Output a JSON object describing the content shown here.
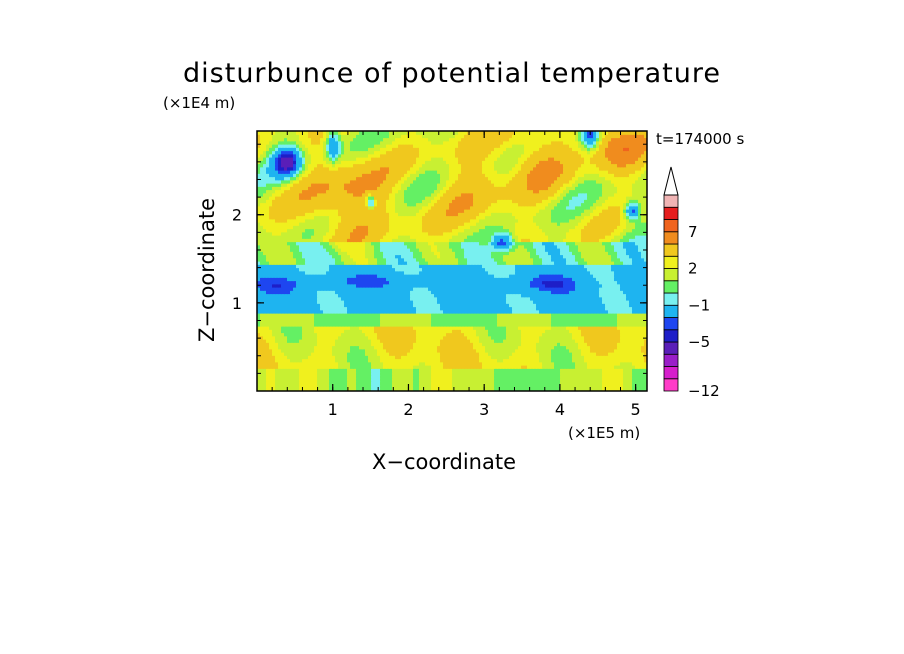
{
  "chart_data": {
    "type": "heatmap",
    "title": "disturbunce of potential temperature",
    "time_label": "t=174000 s",
    "xlabel": "X−coordinate",
    "ylabel": "Z−coordinate",
    "x_unit": "(×1E5 m)",
    "y_unit": "(×1E4 m)",
    "xlim": [
      0,
      5.15
    ],
    "ylim": [
      0,
      2.95
    ],
    "x_ticks": [
      1,
      2,
      3,
      4,
      5
    ],
    "y_ticks": [
      1,
      2
    ],
    "x_tick_labels": [
      "1",
      "2",
      "3",
      "4",
      "5"
    ],
    "y_tick_labels": [
      "1",
      "2"
    ],
    "colorbar": {
      "levels": [
        -12,
        -11,
        -9,
        -7,
        -5,
        -4,
        -3,
        -1,
        0,
        1,
        2,
        3,
        5,
        7,
        9,
        11
      ],
      "colors": [
        "#ff3cc8",
        "#d61ecc",
        "#9a1ec8",
        "#5a1eb8",
        "#1e1ec8",
        "#1e46f0",
        "#1eb4f0",
        "#78f0f0",
        "#64f064",
        "#c8f032",
        "#f0f01e",
        "#f0c81e",
        "#f08c1e",
        "#f0641e",
        "#e61e1e",
        "#f0b4b4"
      ],
      "tick_values": [
        -12,
        -5,
        -1,
        2,
        7
      ],
      "tick_labels": [
        "−12",
        "−5",
        "−1",
        "2",
        "7"
      ],
      "extend": "max"
    },
    "grid": false,
    "legend": "colorbar-right"
  }
}
